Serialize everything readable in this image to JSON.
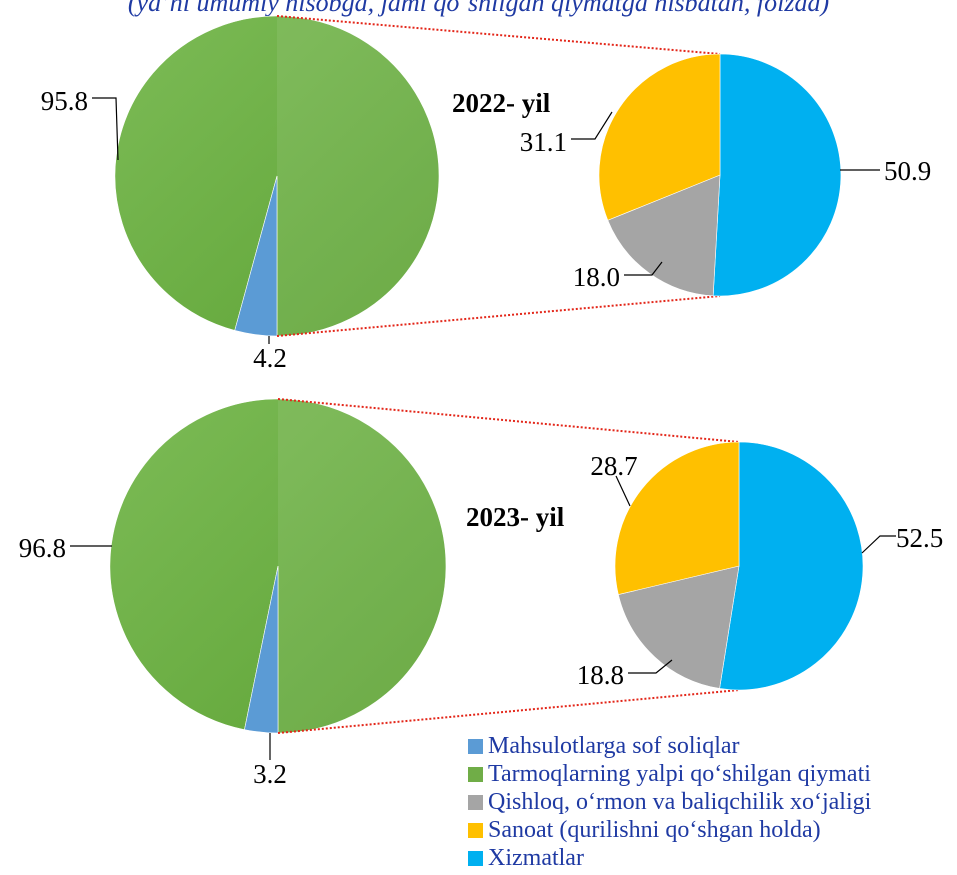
{
  "subtitle": "(ya’ni umumiy hisobga, jami qo‘shilgan qiymatga nisbatan, foizda)",
  "colors": {
    "net_taxes": "#5b9bd5",
    "gva_light": "#7cbb56",
    "gva_dark": "#5fa436",
    "agriculture": "#a5a5a5",
    "industry": "#ffc000",
    "services": "#00b0f0",
    "connector": "#e32619",
    "label_text": "#000000",
    "legend_text": "#1f3aa3"
  },
  "legend": [
    {
      "label": "Mahsulotlarga sof soliqlar",
      "color": "#5b9bd5"
    },
    {
      "label": "Tarmoqlarning yalpi qo‘shilgan qiymati",
      "color": "#70ad47"
    },
    {
      "label": "Qishloq, o‘rmon va baliqchilik xo‘jaligi",
      "color": "#a5a5a5"
    },
    {
      "label": "Sanoat (qurilishni qo‘shgan holda)",
      "color": "#ffc000"
    },
    {
      "label": "Xizmatlar",
      "color": "#00b0f0"
    }
  ],
  "chart_data": [
    {
      "type": "pie",
      "title": "2022- yil",
      "main": [
        {
          "name": "Mahsulotlarga sof soliqlar",
          "value": 4.2,
          "label": "4.2"
        },
        {
          "name": "Tarmoqlarning yalpi qo‘shilgan qiymati",
          "value": 95.8,
          "label": "95.8"
        }
      ],
      "breakdown": [
        {
          "name": "Xizmatlar",
          "value": 50.9,
          "label": "50.9"
        },
        {
          "name": "Qishloq, o‘rmon va baliqchilik xo‘jaligi",
          "value": 18.0,
          "label": "18.0"
        },
        {
          "name": "Sanoat (qurilishni qo‘shgan holda)",
          "value": 31.1,
          "label": "31.1"
        }
      ]
    },
    {
      "type": "pie",
      "title": "2023- yil",
      "main": [
        {
          "name": "Mahsulotlarga sof soliqlar",
          "value": 3.2,
          "label": "3.2"
        },
        {
          "name": "Tarmoqlarning yalpi qo‘shilgan qiymati",
          "value": 96.8,
          "label": "96.8"
        }
      ],
      "breakdown": [
        {
          "name": "Xizmatlar",
          "value": 52.5,
          "label": "52.5"
        },
        {
          "name": "Qishloq, o‘rmon va baliqchilik xo‘jaligi",
          "value": 18.8,
          "label": "18.8"
        },
        {
          "name": "Sanoat (qurilishni qo‘shgan holda)",
          "value": 28.7,
          "label": "28.7"
        }
      ]
    }
  ]
}
